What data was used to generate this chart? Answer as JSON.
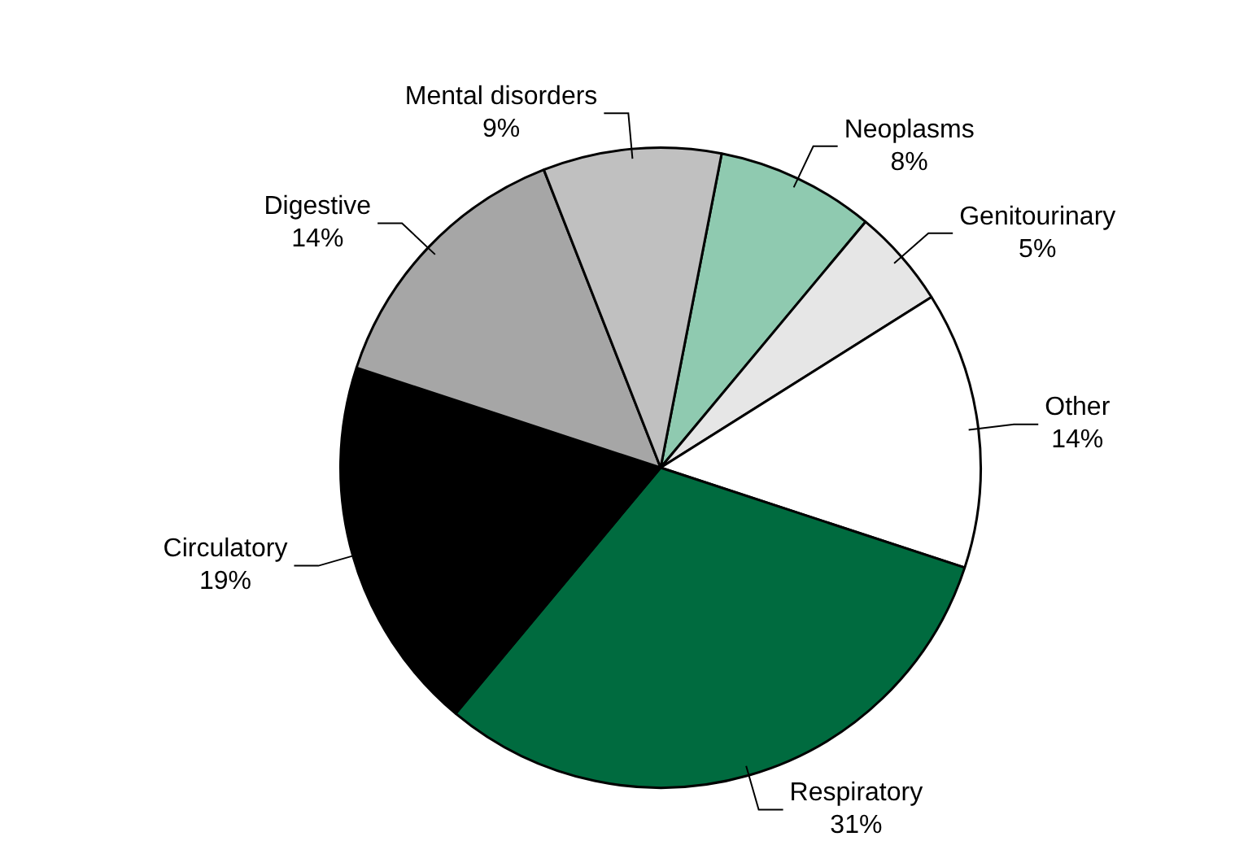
{
  "chart_data": {
    "type": "pie",
    "categories": [
      "Neoplasms",
      "Genitourinary",
      "Other",
      "Respiratory",
      "Circulatory",
      "Digestive",
      "Mental disorders"
    ],
    "values": [
      8,
      5,
      14,
      31,
      19,
      14,
      9
    ],
    "value_labels": [
      "8%",
      "5%",
      "14%",
      "31%",
      "19%",
      "14%",
      "9%"
    ],
    "colors": [
      "#8fcab0",
      "#e6e6e6",
      "#ffffff",
      "#006b3f",
      "#000000",
      "#a6a6a6",
      "#c0c0c0"
    ],
    "legend": false
  }
}
